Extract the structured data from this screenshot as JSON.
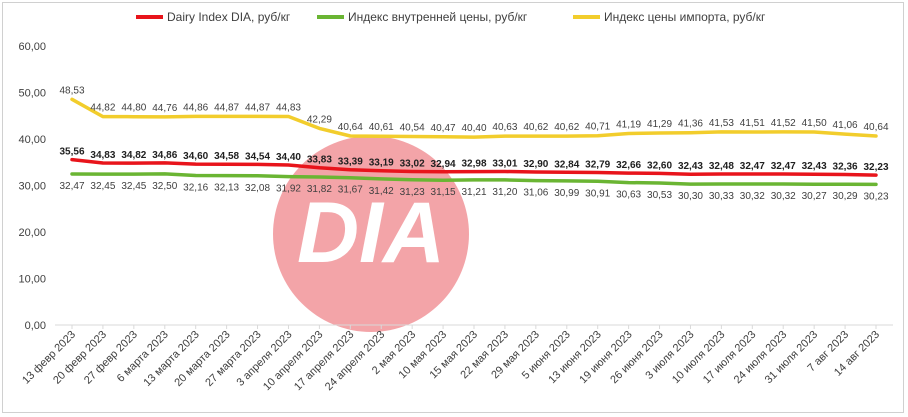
{
  "chart_data": {
    "type": "line",
    "title": "",
    "xlabel": "",
    "ylabel": "",
    "ylim": [
      0,
      60
    ],
    "yticks": [
      "0,00",
      "10,00",
      "20,00",
      "30,00",
      "40,00",
      "50,00",
      "60,00"
    ],
    "grid": false,
    "legend_position": "top",
    "watermark_text": "DIA",
    "categories": [
      "13 февр 2023",
      "20 февр 2023",
      "27 февр 2023",
      "6 марта 2023",
      "13 марта 2023",
      "20 марта 2023",
      "27 марта 2023",
      "3 апреля 2023",
      "10 апреля 2023",
      "17 апреля 2023",
      "24 апреля 2023",
      "2 мая 2023",
      "10 мая 2023",
      "15 мая 2023",
      "22 мая 2023",
      "29 мая 2023",
      "5 июня 2023",
      "13 июня 2023",
      "19 июня 2023",
      "26 июня 2023",
      "3 июля 2023",
      "10 июля 2023",
      "17 июля 2023",
      "24 июля 2023",
      "31 июля 2023",
      "7 авг 2023",
      "14 авг 2023"
    ],
    "series": [
      {
        "name": "Dairy Index DIA,  руб/кг",
        "color": "#e8141b",
        "labels_bold": true,
        "values": [
          35.56,
          34.83,
          34.82,
          34.86,
          34.6,
          34.58,
          34.54,
          34.4,
          33.83,
          33.39,
          33.19,
          33.02,
          32.94,
          32.98,
          33.01,
          32.9,
          32.84,
          32.79,
          32.66,
          32.6,
          32.43,
          32.48,
          32.47,
          32.47,
          32.43,
          32.36,
          32.23
        ],
        "labels": [
          "35,56",
          "34,83",
          "34,82",
          "34,86",
          "34,60",
          "34,58",
          "34,54",
          "34,40",
          "33,83",
          "33,39",
          "33,19",
          "33,02",
          "32,94",
          "32,98",
          "33,01",
          "32,90",
          "32,84",
          "32,79",
          "32,66",
          "32,60",
          "32,43",
          "32,48",
          "32,47",
          "32,47",
          "32,43",
          "32,36",
          "32,23"
        ]
      },
      {
        "name": "Индекс внутренней цены, руб/кг",
        "color": "#6ab533",
        "labels_bold": false,
        "values": [
          32.47,
          32.45,
          32.45,
          32.5,
          32.16,
          32.13,
          32.08,
          31.92,
          31.82,
          31.67,
          31.42,
          31.23,
          31.15,
          31.21,
          31.2,
          31.06,
          30.99,
          30.91,
          30.63,
          30.53,
          30.3,
          30.33,
          30.32,
          30.32,
          30.27,
          30.29,
          30.23
        ],
        "labels": [
          "32,47",
          "32,45",
          "32,45",
          "32,50",
          "32,16",
          "32,13",
          "32,08",
          "31,92",
          "31,82",
          "31,67",
          "31,42",
          "31,23",
          "31,15",
          "31,21",
          "31,20",
          "31,06",
          "30,99",
          "30,91",
          "30,63",
          "30,53",
          "30,30",
          "30,33",
          "30,32",
          "30,32",
          "30,27",
          "30,29",
          "30,23"
        ]
      },
      {
        "name": "Индекс цены импорта, руб/кг",
        "color": "#f2cd2c",
        "labels_bold": false,
        "values": [
          48.53,
          44.82,
          44.8,
          44.76,
          44.86,
          44.87,
          44.87,
          44.83,
          42.29,
          40.64,
          40.61,
          40.54,
          40.47,
          40.4,
          40.63,
          40.62,
          40.62,
          40.71,
          41.19,
          41.29,
          41.36,
          41.53,
          41.51,
          41.52,
          41.5,
          41.06,
          40.64
        ],
        "labels": [
          "48,53",
          "44,82",
          "44,80",
          "44,76",
          "44,86",
          "44,87",
          "44,87",
          "44,83",
          "42,29",
          "40,64",
          "40,61",
          "40,54",
          "40,47",
          "40,40",
          "40,63",
          "40,62",
          "40,62",
          "40,71",
          "41,19",
          "41,29",
          "41,36",
          "41,53",
          "41,51",
          "41,52",
          "41,50",
          "41,06",
          "40,64"
        ]
      }
    ]
  }
}
